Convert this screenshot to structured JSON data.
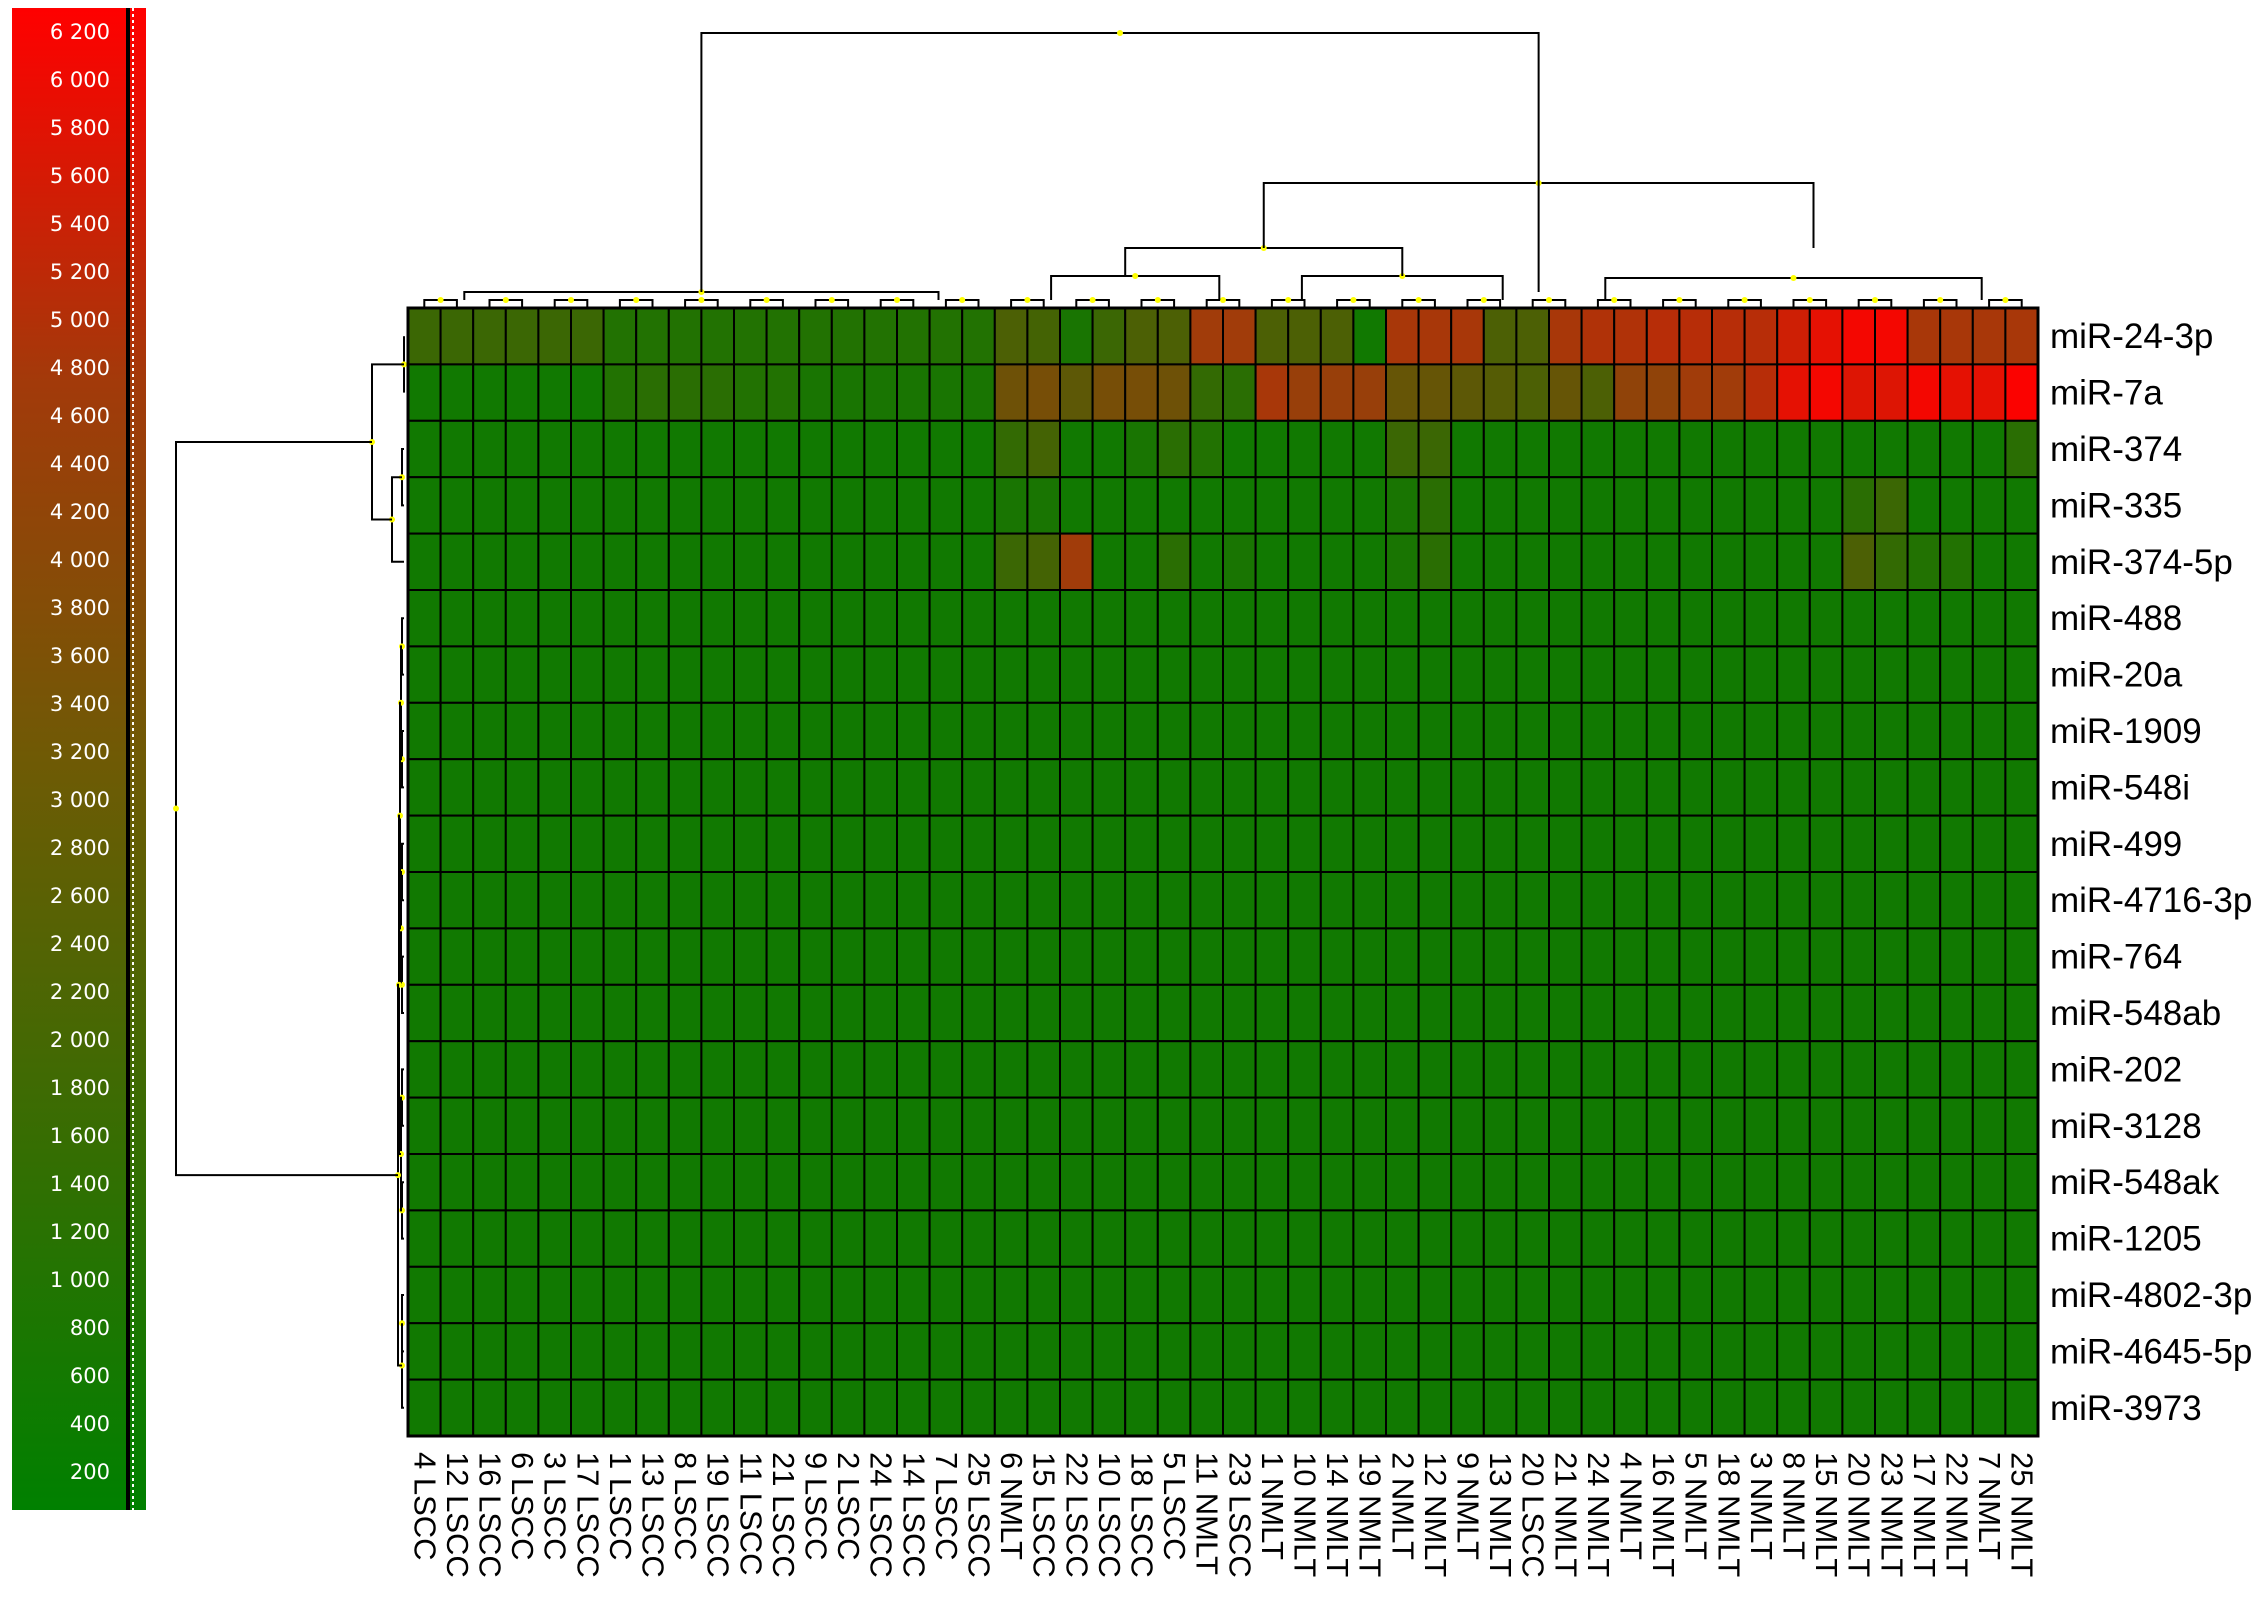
{
  "chart_data": {
    "type": "heatmap",
    "colorscale": {
      "low": "#008000",
      "mid": "#a03c0a",
      "high": "#ff0000",
      "min": 0,
      "max": 6300
    },
    "color_scale_ticks": [
      "200",
      "400",
      "600",
      "800",
      "1 000",
      "1 200",
      "1 400",
      "1 600",
      "1 800",
      "2 000",
      "2 200",
      "2 400",
      "2 600",
      "2 800",
      "3 000",
      "3 200",
      "3 400",
      "3 600",
      "3 800",
      "4 000",
      "4 200",
      "4 400",
      "4 600",
      "4 800",
      "5 000",
      "5 200",
      "5 400",
      "5 600",
      "5 800",
      "6 000",
      "6 200"
    ],
    "color_scale_tick_values": [
      200,
      400,
      600,
      800,
      1000,
      1200,
      1400,
      1600,
      1800,
      2000,
      2200,
      2400,
      2600,
      2800,
      3000,
      3200,
      3400,
      3600,
      3800,
      4000,
      4200,
      4400,
      4600,
      4800,
      5000,
      5200,
      5400,
      5600,
      5800,
      6000,
      6200
    ],
    "rows": [
      "miR-24-3p",
      "miR-7a",
      "miR-374",
      "miR-335",
      "miR-374-5p",
      "miR-488",
      "miR-20a",
      "miR-1909",
      "miR-548i",
      "miR-499",
      "miR-4716-3p",
      "miR-764",
      "miR-548ab",
      "miR-202",
      "miR-3128",
      "miR-548ak",
      "miR-1205",
      "miR-4802-3p",
      "miR-4645-5p",
      "miR-3973"
    ],
    "columns": [
      "4 LSCC",
      "12 LSCC",
      "16 LSCC",
      "6 LSCC",
      "3 LSCC",
      "17 LSCC",
      "1 LSCC",
      "13 LSCC",
      "8 LSCC",
      "19 LSCC",
      "11 LSCC",
      "21 LSCC",
      "9 LSCC",
      "2 LSCC",
      "24 LSCC",
      "14 LSCC",
      "7 LSCC",
      "25 LSCC",
      "6 NMLT",
      "15 LSCC",
      "22 LSCC",
      "10 LSCC",
      "18 LSCC",
      "5 LSCC",
      "11 NMLT",
      "23 LSCC",
      "1 NMLT",
      "10 NMLT",
      "14 NMLT",
      "19 NMLT",
      "2 NMLT",
      "12 NMLT",
      "9 NMLT",
      "13 NMLT",
      "20 LSCC",
      "21 NMLT",
      "24 NMLT",
      "4 NMLT",
      "16 NMLT",
      "5 NMLT",
      "18 NMLT",
      "3 NMLT",
      "8 NMLT",
      "15 NMLT",
      "20 NMLT",
      "23 NMLT",
      "17 NMLT",
      "22 NMLT",
      "7 NMLT",
      "25 NMLT"
    ],
    "values": [
      [
        1400,
        1400,
        1400,
        1400,
        1400,
        1400,
        800,
        800,
        800,
        800,
        800,
        800,
        800,
        800,
        800,
        800,
        800,
        800,
        1800,
        1600,
        600,
        1400,
        1800,
        1800,
        3800,
        3800,
        1800,
        1800,
        1800,
        400,
        4000,
        4000,
        4000,
        1800,
        1800,
        4000,
        4200,
        4200,
        4400,
        4400,
        4400,
        4400,
        5000,
        5600,
        6000,
        6000,
        4000,
        4000,
        4000,
        4000
      ],
      [
        400,
        400,
        400,
        400,
        400,
        400,
        800,
        1000,
        1000,
        1000,
        800,
        800,
        600,
        600,
        600,
        600,
        600,
        600,
        2600,
        2800,
        2200,
        2800,
        2800,
        2600,
        1200,
        1000,
        4000,
        3600,
        3600,
        3600,
        2400,
        2400,
        2200,
        2000,
        1800,
        2400,
        1800,
        3400,
        3400,
        3800,
        3800,
        4400,
        5600,
        6000,
        5400,
        5400,
        6000,
        5600,
        5600,
        6200
      ],
      [
        400,
        400,
        400,
        400,
        400,
        400,
        400,
        400,
        400,
        400,
        400,
        400,
        400,
        400,
        400,
        400,
        400,
        400,
        1200,
        1600,
        400,
        400,
        600,
        1000,
        800,
        400,
        400,
        400,
        400,
        400,
        1400,
        1400,
        400,
        400,
        400,
        400,
        400,
        400,
        400,
        400,
        400,
        400,
        400,
        400,
        400,
        400,
        400,
        400,
        400,
        1000
      ],
      [
        400,
        400,
        400,
        400,
        400,
        400,
        400,
        400,
        400,
        400,
        400,
        400,
        400,
        400,
        400,
        400,
        400,
        400,
        600,
        600,
        400,
        400,
        400,
        400,
        400,
        400,
        400,
        400,
        400,
        400,
        600,
        1000,
        400,
        400,
        400,
        400,
        400,
        400,
        400,
        400,
        400,
        400,
        400,
        400,
        1000,
        1400,
        400,
        400,
        400,
        400
      ],
      [
        400,
        400,
        400,
        400,
        400,
        400,
        400,
        400,
        400,
        400,
        400,
        400,
        400,
        400,
        400,
        400,
        400,
        400,
        1400,
        1600,
        3800,
        400,
        400,
        1000,
        400,
        600,
        400,
        400,
        400,
        400,
        600,
        1000,
        400,
        400,
        400,
        400,
        400,
        400,
        400,
        400,
        400,
        400,
        400,
        400,
        1800,
        1200,
        800,
        800,
        400,
        400
      ],
      [
        400,
        400,
        400,
        400,
        400,
        400,
        400,
        400,
        400,
        400,
        400,
        400,
        400,
        400,
        400,
        400,
        400,
        400,
        400,
        400,
        400,
        400,
        400,
        400,
        400,
        400,
        400,
        400,
        400,
        400,
        400,
        400,
        400,
        400,
        400,
        400,
        400,
        400,
        400,
        400,
        400,
        400,
        400,
        400,
        400,
        400,
        400,
        400,
        400,
        400
      ],
      [
        400,
        400,
        400,
        400,
        400,
        400,
        400,
        400,
        400,
        400,
        400,
        400,
        400,
        400,
        400,
        400,
        400,
        400,
        400,
        400,
        400,
        400,
        400,
        400,
        400,
        400,
        400,
        400,
        400,
        400,
        400,
        400,
        400,
        400,
        400,
        400,
        400,
        400,
        400,
        400,
        400,
        400,
        400,
        400,
        400,
        400,
        400,
        400,
        400,
        400
      ],
      [
        400,
        400,
        400,
        400,
        400,
        400,
        400,
        400,
        400,
        400,
        400,
        400,
        400,
        400,
        400,
        400,
        400,
        400,
        400,
        400,
        400,
        400,
        400,
        400,
        400,
        400,
        400,
        400,
        400,
        400,
        400,
        400,
        400,
        400,
        400,
        400,
        400,
        400,
        400,
        400,
        400,
        400,
        400,
        400,
        400,
        400,
        400,
        400,
        400,
        400
      ],
      [
        400,
        400,
        400,
        400,
        400,
        400,
        400,
        400,
        400,
        400,
        400,
        400,
        400,
        400,
        400,
        400,
        400,
        400,
        400,
        400,
        400,
        400,
        400,
        400,
        400,
        400,
        400,
        400,
        400,
        400,
        400,
        400,
        400,
        400,
        400,
        400,
        400,
        400,
        400,
        400,
        400,
        400,
        400,
        400,
        400,
        400,
        400,
        400,
        400,
        400
      ],
      [
        400,
        400,
        400,
        400,
        400,
        400,
        400,
        400,
        400,
        400,
        400,
        400,
        400,
        400,
        400,
        400,
        400,
        400,
        400,
        400,
        400,
        400,
        400,
        400,
        400,
        400,
        400,
        400,
        400,
        400,
        400,
        400,
        400,
        400,
        400,
        400,
        400,
        400,
        400,
        400,
        400,
        400,
        400,
        400,
        400,
        400,
        400,
        400,
        400,
        400
      ],
      [
        400,
        400,
        400,
        400,
        400,
        400,
        400,
        400,
        400,
        400,
        400,
        400,
        400,
        400,
        400,
        400,
        400,
        400,
        400,
        400,
        400,
        400,
        400,
        400,
        400,
        400,
        400,
        400,
        400,
        400,
        400,
        400,
        400,
        400,
        400,
        400,
        400,
        400,
        400,
        400,
        400,
        400,
        400,
        400,
        400,
        400,
        400,
        400,
        400,
        400
      ],
      [
        400,
        400,
        400,
        400,
        400,
        400,
        400,
        400,
        400,
        400,
        400,
        400,
        400,
        400,
        400,
        400,
        400,
        400,
        400,
        400,
        400,
        400,
        400,
        400,
        400,
        400,
        400,
        400,
        400,
        400,
        400,
        400,
        400,
        400,
        400,
        400,
        400,
        400,
        400,
        400,
        400,
        400,
        400,
        400,
        400,
        400,
        400,
        400,
        400,
        400
      ],
      [
        400,
        400,
        400,
        400,
        400,
        400,
        400,
        400,
        400,
        400,
        400,
        400,
        400,
        400,
        400,
        400,
        400,
        400,
        400,
        400,
        400,
        400,
        400,
        400,
        400,
        400,
        400,
        400,
        400,
        400,
        400,
        400,
        400,
        400,
        400,
        400,
        400,
        400,
        400,
        400,
        400,
        400,
        400,
        400,
        400,
        400,
        400,
        400,
        400,
        400
      ],
      [
        400,
        400,
        400,
        400,
        400,
        400,
        400,
        400,
        400,
        400,
        400,
        400,
        400,
        400,
        400,
        400,
        400,
        400,
        400,
        400,
        400,
        400,
        400,
        400,
        400,
        400,
        400,
        400,
        400,
        400,
        400,
        400,
        400,
        400,
        400,
        400,
        400,
        400,
        400,
        400,
        400,
        400,
        400,
        400,
        400,
        400,
        400,
        400,
        400,
        400
      ],
      [
        400,
        400,
        400,
        400,
        400,
        400,
        400,
        400,
        400,
        400,
        400,
        400,
        400,
        400,
        400,
        400,
        400,
        400,
        400,
        400,
        400,
        400,
        400,
        400,
        400,
        400,
        400,
        400,
        400,
        400,
        400,
        400,
        400,
        400,
        400,
        400,
        400,
        400,
        400,
        400,
        400,
        400,
        400,
        400,
        400,
        400,
        400,
        400,
        400,
        400
      ],
      [
        400,
        400,
        400,
        400,
        400,
        400,
        400,
        400,
        400,
        400,
        400,
        400,
        400,
        400,
        400,
        400,
        400,
        400,
        400,
        400,
        400,
        400,
        400,
        400,
        400,
        400,
        400,
        400,
        400,
        400,
        400,
        400,
        400,
        400,
        400,
        400,
        400,
        400,
        400,
        400,
        400,
        400,
        400,
        400,
        400,
        400,
        400,
        400,
        400,
        400
      ],
      [
        400,
        400,
        400,
        400,
        400,
        400,
        400,
        400,
        400,
        400,
        400,
        400,
        400,
        400,
        400,
        400,
        400,
        400,
        400,
        400,
        400,
        400,
        400,
        400,
        400,
        400,
        400,
        400,
        400,
        400,
        400,
        400,
        400,
        400,
        400,
        400,
        400,
        400,
        400,
        400,
        400,
        400,
        400,
        400,
        400,
        400,
        400,
        400,
        400,
        400
      ],
      [
        400,
        400,
        400,
        400,
        400,
        400,
        400,
        400,
        400,
        400,
        400,
        400,
        400,
        400,
        400,
        400,
        400,
        400,
        400,
        400,
        400,
        400,
        400,
        400,
        400,
        400,
        400,
        400,
        400,
        400,
        400,
        400,
        400,
        400,
        400,
        400,
        400,
        400,
        400,
        400,
        400,
        400,
        400,
        400,
        400,
        400,
        400,
        400,
        400,
        400
      ],
      [
        400,
        400,
        400,
        400,
        400,
        400,
        400,
        400,
        400,
        400,
        400,
        400,
        400,
        400,
        400,
        400,
        400,
        400,
        400,
        400,
        400,
        400,
        400,
        400,
        400,
        400,
        400,
        400,
        400,
        400,
        400,
        400,
        400,
        400,
        400,
        400,
        400,
        400,
        400,
        400,
        400,
        400,
        400,
        400,
        400,
        400,
        400,
        400,
        400,
        400
      ],
      [
        400,
        400,
        400,
        400,
        400,
        400,
        400,
        400,
        400,
        400,
        400,
        400,
        400,
        400,
        400,
        400,
        400,
        400,
        400,
        400,
        400,
        400,
        400,
        400,
        400,
        400,
        400,
        400,
        400,
        400,
        400,
        400,
        400,
        400,
        400,
        400,
        400,
        400,
        400,
        400,
        400,
        400,
        400,
        400,
        400,
        400,
        400,
        400,
        400,
        400
      ]
    ],
    "row_dendrogram": {
      "merges": [
        [
          0,
          1
        ],
        [
          2,
          3
        ],
        [
          -2,
          4
        ],
        [
          -1,
          -3
        ],
        [
          5,
          6
        ],
        [
          7,
          8
        ],
        [
          9,
          10
        ],
        [
          11,
          12
        ],
        [
          13,
          14
        ],
        [
          15,
          16
        ],
        [
          17,
          18
        ],
        [
          -5,
          -6
        ],
        [
          -7,
          -8
        ],
        [
          -9,
          -10
        ],
        [
          -11,
          19
        ],
        [
          -12,
          -13
        ],
        [
          -16,
          -14
        ],
        [
          -17,
          -15
        ],
        [
          -4,
          -18
        ]
      ]
    },
    "column_dendrogram": {
      "groups": [
        [
          "4 LSCC",
          "25 LSCC"
        ],
        [
          "6 NMLT",
          "23 LSCC"
        ],
        [
          "1 NMLT",
          "20 LSCC"
        ],
        [
          "21 NMLT",
          "25 NMLT"
        ]
      ]
    },
    "legend": "left",
    "grid": true
  }
}
